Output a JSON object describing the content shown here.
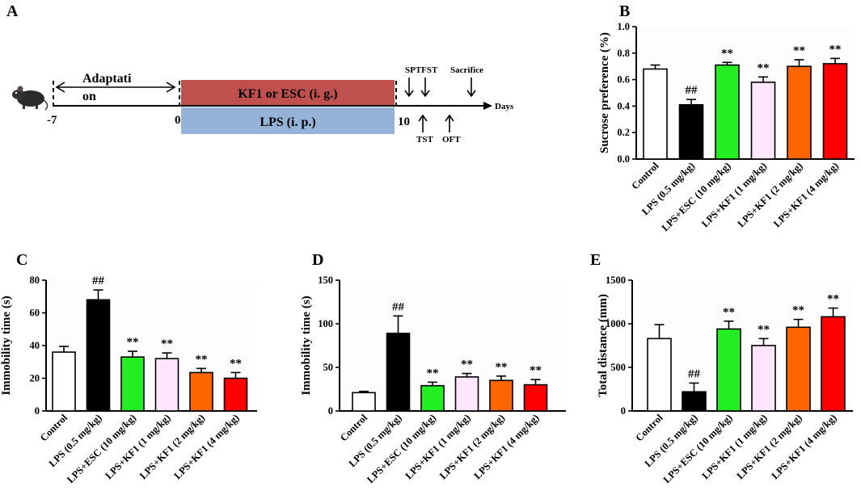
{
  "panel_letters": [
    "A",
    "B",
    "C",
    "D",
    "E"
  ],
  "colors": {
    "control": "#ffffff",
    "lps": "#000000",
    "esc": "#22ee22",
    "kf1_1": "#ffe6ff",
    "kf1_2": "#ff6600",
    "kf1_4": "#ff0000",
    "kf1_esc_box": "#c0504d",
    "lps_box": "#95b3d7",
    "plot_bg": "#fdfdfd"
  },
  "timeline": {
    "adaptation_line1": "Adaptati",
    "adaptation_line2": "on",
    "kf1_esc_label": "KF1 or ESC (i. g.)",
    "lps_label": "LPS (i. p.)",
    "tick_minus7": "-7",
    "tick_0": "0",
    "tick_10": "10",
    "days_label": "Days",
    "spt_fst_label": "SPTFST",
    "sacrifice_label": "Sacrifice",
    "tst_label": "TST",
    "oft_label": "OFT",
    "mouse_icon": "mouse-icon"
  },
  "chart_data": [
    {
      "panel": "B",
      "type": "bar",
      "ylabel": "Sucrose preference (%)",
      "categories": [
        "Control",
        "LPS (0.5 mg/kg)",
        "LPS+ESC (10 mg/kg)",
        "LPS+KF1 (1 mg/kg)",
        "LPS+KF1 (2 mg/kg)",
        "LPS+KF1 (4 mg/kg)"
      ],
      "values": [
        0.68,
        0.41,
        0.71,
        0.58,
        0.7,
        0.72
      ],
      "errors": [
        0.03,
        0.04,
        0.02,
        0.04,
        0.05,
        0.04
      ],
      "annotations": [
        "",
        "##",
        "**",
        "**",
        "**",
        "**"
      ],
      "ylim": [
        0,
        1.0
      ],
      "yticks": [
        0.0,
        0.2,
        0.4,
        0.6,
        0.8,
        1.0
      ],
      "ytick_labels": [
        "0.0",
        "0.2",
        "0.4",
        "0.6",
        "0.8",
        "1.0"
      ]
    },
    {
      "panel": "C",
      "type": "bar",
      "ylabel": "Immobility time (s)",
      "categories": [
        "Control",
        "LPS (0.5 mg/kg)",
        "LPS+ESC (10 mg/kg)",
        "LPS+KF1 (1 mg/kg)",
        "LPS+KF1 (2 mg/kg)",
        "LPS+KF1 (4 mg/kg)"
      ],
      "values": [
        36,
        68,
        33,
        32,
        23.5,
        20
      ],
      "errors": [
        3.5,
        6,
        3.5,
        3.5,
        2.5,
        3.5
      ],
      "annotations": [
        "",
        "##",
        "**",
        "**",
        "**",
        "**"
      ],
      "ylim": [
        0,
        80
      ],
      "yticks": [
        0,
        20,
        40,
        60,
        80
      ],
      "ytick_labels": [
        "0",
        "20",
        "40",
        "60",
        "80"
      ]
    },
    {
      "panel": "D",
      "type": "bar",
      "ylabel": "Immobility time (s)",
      "categories": [
        "Control",
        "LPS (0.5 mg/kg)",
        "LPS+ESC (10 mg/kg)",
        "LPS+KF1 (1 mg/kg)",
        "LPS+KF1 (2 mg/kg)",
        "LPS+KF1 (4 mg/kg)"
      ],
      "values": [
        21,
        89,
        29,
        39,
        35,
        30
      ],
      "errors": [
        1.5,
        20,
        4,
        4,
        5,
        6
      ],
      "annotations": [
        "",
        "##",
        "**",
        "**",
        "**",
        "**"
      ],
      "ylim": [
        0,
        150
      ],
      "yticks": [
        0,
        50,
        100,
        150
      ],
      "ytick_labels": [
        "0",
        "50",
        "100",
        "150"
      ]
    },
    {
      "panel": "E",
      "type": "bar",
      "ylabel": "Total distance (mm)",
      "categories": [
        "Control",
        "LPS (0.5 mg/kg)",
        "LPS+ESC (10 mg/kg)",
        "LPS+KF1 (1 mg/kg)",
        "LPS+KF1 (2 mg/kg)",
        "LPS+KF1 (4 mg/kg)"
      ],
      "values": [
        830,
        220,
        940,
        750,
        960,
        1080
      ],
      "errors": [
        160,
        100,
        90,
        80,
        90,
        100
      ],
      "annotations": [
        "",
        "##",
        "**",
        "**",
        "**",
        "**"
      ],
      "ylim": [
        0,
        1500
      ],
      "yticks": [
        0,
        500,
        1000,
        1500
      ],
      "ytick_labels": [
        "0",
        "500",
        "1000",
        "1500"
      ]
    }
  ]
}
